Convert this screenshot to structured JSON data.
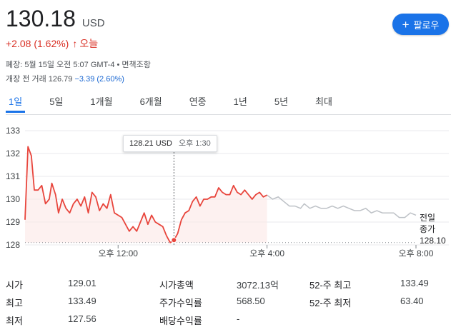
{
  "header": {
    "price": "130.18",
    "currency": "USD",
    "change": "+2.08 (1.62%)",
    "change_suffix": "오늘",
    "follow_label": "팔로우"
  },
  "meta": {
    "closed_text": "폐장: 5월 15일 오전 5:07 GMT-4 • 면책조항",
    "premarket_label": "개장 전 거래 126.79",
    "premarket_change": "−3.39 (2.60%)"
  },
  "tabs": [
    {
      "label": "1일",
      "active": true
    },
    {
      "label": "5일",
      "active": false
    },
    {
      "label": "1개월",
      "active": false
    },
    {
      "label": "6개월",
      "active": false
    },
    {
      "label": "연중",
      "active": false
    },
    {
      "label": "1년",
      "active": false
    },
    {
      "label": "5년",
      "active": false
    },
    {
      "label": "최대",
      "active": false
    }
  ],
  "tooltip": {
    "value": "128.21 USD",
    "time": "오후 1:30"
  },
  "prev_close": {
    "label1": "전일",
    "label2": "종가",
    "value": "128.10"
  },
  "chart_data": {
    "type": "line",
    "y_ticks": [
      133,
      132,
      131,
      130,
      129,
      128
    ],
    "ylim": [
      128,
      133
    ],
    "x_ticks": [
      {
        "label": "오후 12:00",
        "x": 12.0
      },
      {
        "label": "오후 4:00",
        "x": 16.0
      },
      {
        "label": "오후 8:00",
        "x": 20.0
      }
    ],
    "xlim": [
      9.5,
      20.0
    ],
    "previous_close": 128.1,
    "hover_x": 13.5,
    "colors": {
      "regular": "#e8453c",
      "extended": "#bdc1c6",
      "fill": "#fce8e6",
      "grid": "#e8eaed"
    },
    "regular_series": [
      [
        9.5,
        129.1
      ],
      [
        9.58,
        132.3
      ],
      [
        9.67,
        131.9
      ],
      [
        9.75,
        130.4
      ],
      [
        9.85,
        130.4
      ],
      [
        9.95,
        130.6
      ],
      [
        10.05,
        129.8
      ],
      [
        10.15,
        130.0
      ],
      [
        10.22,
        130.7
      ],
      [
        10.32,
        130.2
      ],
      [
        10.4,
        129.4
      ],
      [
        10.5,
        130.0
      ],
      [
        10.6,
        129.6
      ],
      [
        10.7,
        129.4
      ],
      [
        10.8,
        129.8
      ],
      [
        10.9,
        130.0
      ],
      [
        11.0,
        129.7
      ],
      [
        11.1,
        130.1
      ],
      [
        11.2,
        129.4
      ],
      [
        11.3,
        130.3
      ],
      [
        11.4,
        130.1
      ],
      [
        11.5,
        129.5
      ],
      [
        11.6,
        129.8
      ],
      [
        11.7,
        129.6
      ],
      [
        11.8,
        130.2
      ],
      [
        11.9,
        129.4
      ],
      [
        12.0,
        129.3
      ],
      [
        12.1,
        129.2
      ],
      [
        12.2,
        128.9
      ],
      [
        12.3,
        128.6
      ],
      [
        12.4,
        128.8
      ],
      [
        12.5,
        128.6
      ],
      [
        12.6,
        129.0
      ],
      [
        12.7,
        129.4
      ],
      [
        12.8,
        128.9
      ],
      [
        12.9,
        129.3
      ],
      [
        13.0,
        129.0
      ],
      [
        13.1,
        128.9
      ],
      [
        13.2,
        128.8
      ],
      [
        13.3,
        128.4
      ],
      [
        13.4,
        128.1
      ],
      [
        13.5,
        128.21
      ],
      [
        13.6,
        128.5
      ],
      [
        13.7,
        129.1
      ],
      [
        13.8,
        129.4
      ],
      [
        13.9,
        129.5
      ],
      [
        14.0,
        129.9
      ],
      [
        14.1,
        130.1
      ],
      [
        14.2,
        129.7
      ],
      [
        14.3,
        130.0
      ],
      [
        14.4,
        130.0
      ],
      [
        14.5,
        130.1
      ],
      [
        14.6,
        130.1
      ],
      [
        14.7,
        130.5
      ],
      [
        14.8,
        130.3
      ],
      [
        14.9,
        130.2
      ],
      [
        15.0,
        130.2
      ],
      [
        15.1,
        130.6
      ],
      [
        15.2,
        130.3
      ],
      [
        15.3,
        130.2
      ],
      [
        15.4,
        130.4
      ],
      [
        15.5,
        130.2
      ],
      [
        15.6,
        130.0
      ],
      [
        15.7,
        130.2
      ],
      [
        15.8,
        130.3
      ],
      [
        15.9,
        130.1
      ],
      [
        16.0,
        130.18
      ]
    ],
    "extended_series": [
      [
        16.0,
        130.18
      ],
      [
        16.15,
        130.0
      ],
      [
        16.3,
        130.1
      ],
      [
        16.45,
        129.9
      ],
      [
        16.6,
        129.7
      ],
      [
        16.75,
        129.7
      ],
      [
        16.9,
        129.6
      ],
      [
        17.0,
        129.8
      ],
      [
        17.15,
        129.6
      ],
      [
        17.3,
        129.7
      ],
      [
        17.45,
        129.6
      ],
      [
        17.6,
        129.6
      ],
      [
        17.75,
        129.7
      ],
      [
        17.9,
        129.6
      ],
      [
        18.05,
        129.7
      ],
      [
        18.2,
        129.6
      ],
      [
        18.35,
        129.5
      ],
      [
        18.5,
        129.5
      ],
      [
        18.65,
        129.6
      ],
      [
        18.8,
        129.4
      ],
      [
        18.95,
        129.5
      ],
      [
        19.1,
        129.4
      ],
      [
        19.25,
        129.4
      ],
      [
        19.4,
        129.4
      ],
      [
        19.55,
        129.2
      ],
      [
        19.7,
        129.2
      ],
      [
        19.85,
        129.4
      ],
      [
        20.0,
        129.3
      ]
    ]
  },
  "stats": {
    "col1": [
      {
        "label": "시가",
        "value": "129.01"
      },
      {
        "label": "최고",
        "value": "133.49"
      },
      {
        "label": "최저",
        "value": "127.56"
      }
    ],
    "col2": [
      {
        "label": "시가총액",
        "value": "3072.13억"
      },
      {
        "label": "주가수익률",
        "value": "568.50"
      },
      {
        "label": "배당수익률",
        "value": "-"
      }
    ],
    "col3": [
      {
        "label": "52-주 최고",
        "value": "133.49"
      },
      {
        "label": "52-주 최저",
        "value": "63.40"
      }
    ]
  }
}
